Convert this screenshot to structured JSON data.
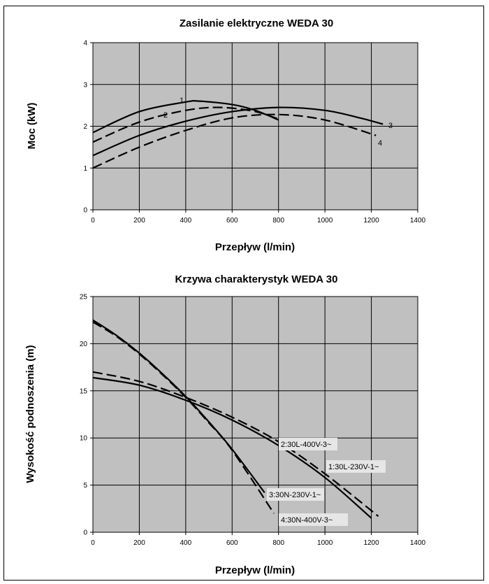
{
  "chart_data": [
    {
      "type": "line",
      "title": "Zasilanie elektryczne WEDA 30",
      "xlabel": "Przepływ (l/min)",
      "ylabel": "Moc (kW)",
      "xlim": [
        0,
        1400
      ],
      "ylim": [
        0,
        4
      ],
      "xticks": [
        "0",
        "200",
        "400",
        "600",
        "800",
        "1000",
        "1200",
        "1400"
      ],
      "yticks": [
        "0",
        "1",
        "2",
        "3",
        "4"
      ],
      "grid": true,
      "plot_bg": "#c0c0c0",
      "series": [
        {
          "name": "1",
          "style": "solid",
          "x": [
            0,
            200,
            400,
            460,
            600,
            700,
            800
          ],
          "y": [
            1.85,
            2.35,
            2.58,
            2.6,
            2.52,
            2.38,
            2.15
          ]
        },
        {
          "name": "2",
          "style": "dashed",
          "x": [
            0,
            200,
            400,
            550,
            700,
            810
          ],
          "y": [
            1.62,
            2.1,
            2.38,
            2.45,
            2.35,
            2.15
          ]
        },
        {
          "name": "3",
          "style": "solid",
          "x": [
            0,
            200,
            400,
            600,
            800,
            1000,
            1150,
            1250
          ],
          "y": [
            1.3,
            1.78,
            2.12,
            2.35,
            2.45,
            2.38,
            2.2,
            2.05
          ]
        },
        {
          "name": "4",
          "style": "dashed",
          "x": [
            0,
            200,
            400,
            600,
            800,
            1000,
            1220
          ],
          "y": [
            1.0,
            1.5,
            1.9,
            2.2,
            2.28,
            2.15,
            1.78
          ]
        }
      ]
    },
    {
      "type": "line",
      "title": "Krzywa charakterystyk WEDA 30",
      "xlabel": "Przepływ (l/min)",
      "ylabel": "Wysokość podnoszenia (m)",
      "xlim": [
        0,
        1400
      ],
      "ylim": [
        0,
        25
      ],
      "xticks": [
        "0",
        "200",
        "400",
        "600",
        "800",
        "1000",
        "1200",
        "1400"
      ],
      "yticks": [
        "0",
        "5",
        "10",
        "15",
        "20",
        "25"
      ],
      "grid": true,
      "plot_bg": "#c0c0c0",
      "series": [
        {
          "name": "1:30L-230V-1~",
          "style": "solid",
          "x": [
            0,
            200,
            400,
            600,
            800,
            1000,
            1200
          ],
          "y": [
            16.4,
            15.6,
            14.0,
            11.9,
            9.2,
            5.8,
            1.5
          ]
        },
        {
          "name": "2:30L-400V-3~",
          "style": "dashed",
          "x": [
            0,
            200,
            400,
            600,
            800,
            1000,
            1230
          ],
          "y": [
            17.0,
            16.0,
            14.3,
            12.2,
            9.6,
            6.2,
            1.7
          ]
        },
        {
          "name": "3:30N-230V-1~",
          "style": "solid",
          "x": [
            0,
            100,
            200,
            300,
            400,
            500,
            600,
            740
          ],
          "y": [
            22.5,
            20.9,
            19.0,
            16.8,
            14.4,
            11.7,
            8.8,
            4.2
          ]
        },
        {
          "name": "4:30N-400V-3~",
          "style": "dashed",
          "x": [
            0,
            100,
            200,
            300,
            400,
            500,
            600,
            780
          ],
          "y": [
            22.3,
            20.8,
            18.9,
            16.7,
            14.3,
            11.6,
            8.7,
            2.0
          ]
        }
      ]
    }
  ]
}
